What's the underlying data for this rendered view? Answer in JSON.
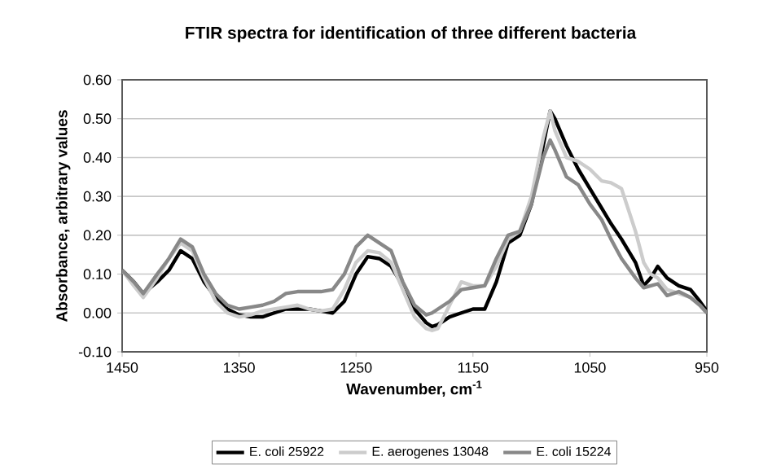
{
  "chart_data": {
    "type": "line",
    "title": "FTIR spectra for identification of three different bacteria",
    "xlabel": "Wavenumber, cm$^{-1}$",
    "ylabel": "Absorbance, arbitrary values",
    "x": [
      1450,
      1440,
      1432,
      1420,
      1410,
      1400,
      1390,
      1380,
      1370,
      1360,
      1350,
      1340,
      1330,
      1320,
      1310,
      1300,
      1290,
      1280,
      1270,
      1260,
      1250,
      1240,
      1230,
      1220,
      1210,
      1200,
      1190,
      1185,
      1180,
      1170,
      1160,
      1150,
      1140,
      1130,
      1120,
      1110,
      1100,
      1090,
      1084,
      1080,
      1070,
      1060,
      1050,
      1040,
      1032,
      1023,
      1011,
      1004,
      998,
      992,
      984,
      974,
      964,
      956,
      950
    ],
    "series": [
      {
        "name": "E. coli 25922",
        "color": "#000000",
        "values": [
          0.11,
          0.08,
          0.05,
          0.08,
          0.11,
          0.16,
          0.14,
          0.08,
          0.04,
          0.01,
          -0.005,
          -0.01,
          -0.01,
          0.0,
          0.01,
          0.01,
          0.01,
          0.005,
          0.0,
          0.03,
          0.1,
          0.145,
          0.14,
          0.12,
          0.07,
          0.01,
          -0.025,
          -0.035,
          -0.03,
          -0.01,
          0.0,
          0.01,
          0.01,
          0.08,
          0.18,
          0.2,
          0.28,
          0.43,
          0.52,
          0.5,
          0.43,
          0.37,
          0.32,
          0.27,
          0.23,
          0.19,
          0.13,
          0.07,
          0.09,
          0.12,
          0.09,
          0.07,
          0.06,
          0.03,
          0.005
        ]
      },
      {
        "name": "E. aerogenes 13048",
        "color": "#cccccc",
        "values": [
          0.11,
          0.07,
          0.04,
          0.09,
          0.14,
          0.18,
          0.16,
          0.09,
          0.03,
          0.0,
          -0.01,
          -0.005,
          0.005,
          0.01,
          0.015,
          0.02,
          0.01,
          0.005,
          0.01,
          0.06,
          0.13,
          0.16,
          0.155,
          0.13,
          0.06,
          -0.01,
          -0.04,
          -0.045,
          -0.04,
          0.02,
          0.08,
          0.07,
          0.07,
          0.12,
          0.19,
          0.21,
          0.3,
          0.45,
          0.52,
          0.47,
          0.4,
          0.39,
          0.37,
          0.34,
          0.335,
          0.32,
          0.21,
          0.13,
          0.1,
          0.09,
          0.06,
          0.05,
          0.04,
          0.02,
          0.0
        ]
      },
      {
        "name": "E. coli 15224",
        "color": "#888888",
        "values": [
          0.11,
          0.08,
          0.05,
          0.1,
          0.14,
          0.19,
          0.17,
          0.1,
          0.05,
          0.02,
          0.01,
          0.015,
          0.02,
          0.03,
          0.05,
          0.055,
          0.055,
          0.055,
          0.06,
          0.1,
          0.17,
          0.2,
          0.18,
          0.16,
          0.08,
          0.02,
          -0.005,
          0.0,
          0.01,
          0.03,
          0.06,
          0.065,
          0.07,
          0.14,
          0.2,
          0.21,
          0.28,
          0.4,
          0.445,
          0.42,
          0.35,
          0.33,
          0.28,
          0.24,
          0.19,
          0.14,
          0.09,
          0.065,
          0.07,
          0.075,
          0.045,
          0.055,
          0.04,
          0.02,
          0.0
        ]
      }
    ],
    "xlim": [
      1450,
      950
    ],
    "xticks": [
      1450,
      1350,
      1250,
      1150,
      1050,
      950
    ],
    "ylim": [
      -0.1,
      0.6
    ],
    "yticks": [
      {
        "value": -0.1,
        "label": "-0.10"
      },
      {
        "value": 0,
        "label": "0.00"
      },
      {
        "value": 0.1,
        "label": "0.10"
      },
      {
        "value": 0.2,
        "label": "0.20"
      },
      {
        "value": 0.3,
        "label": "0.30"
      },
      {
        "value": 0.4,
        "label": "0.40"
      },
      {
        "value": 0.5,
        "label": "0.50"
      },
      {
        "value": 0.6,
        "label": "0.60"
      }
    ],
    "grid": "y",
    "legend": "bottom",
    "line_style": "solid"
  }
}
